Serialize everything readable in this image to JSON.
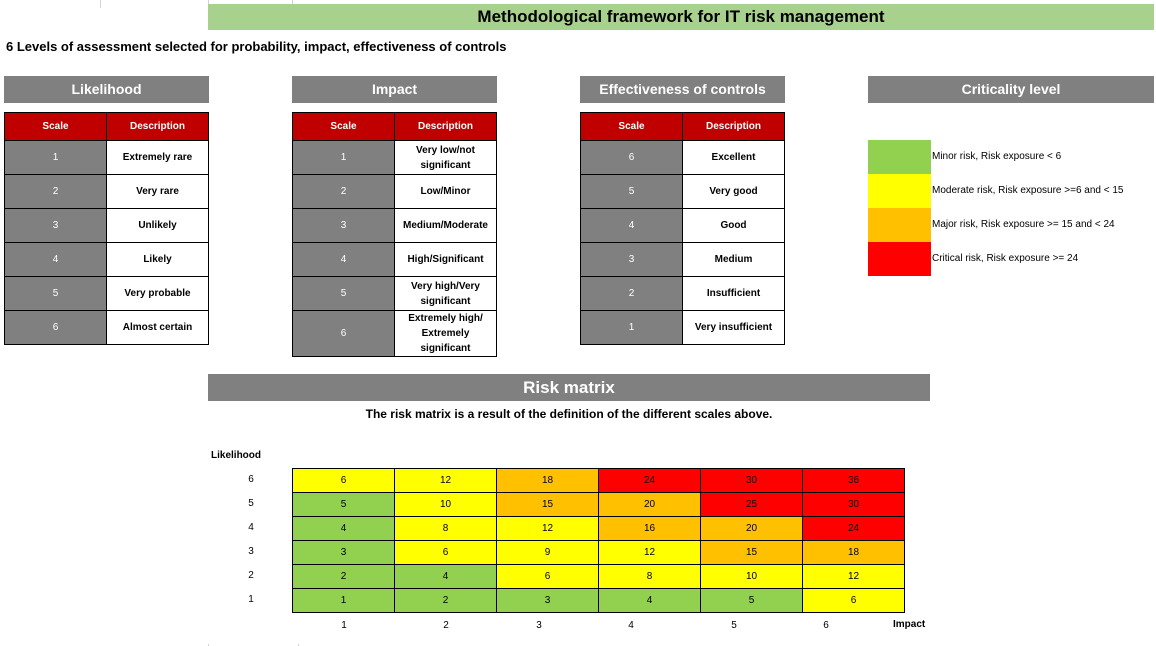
{
  "header": {
    "title": "Methodological framework for IT risk management",
    "subtitle": "6 Levels of assessment selected for probability, impact, effectiveness of controls"
  },
  "colors": {
    "title_band": "#a9d18e",
    "section_header": "#808080",
    "table_header": "#c00000",
    "minor": "#92d050",
    "moderate": "#ffff00",
    "major": "#ffc000",
    "critical": "#ff0000"
  },
  "likelihood": {
    "title": "Likelihood",
    "col_scale": "Scale",
    "col_desc": "Description",
    "rows": [
      {
        "scale": "1",
        "desc": "Extremely rare"
      },
      {
        "scale": "2",
        "desc": "Very rare"
      },
      {
        "scale": "3",
        "desc": "Unlikely"
      },
      {
        "scale": "4",
        "desc": "Likely"
      },
      {
        "scale": "5",
        "desc": "Very probable"
      },
      {
        "scale": "6",
        "desc": "Almost certain"
      }
    ]
  },
  "impact": {
    "title": "Impact",
    "col_scale": "Scale",
    "col_desc": "Description",
    "rows": [
      {
        "scale": "1",
        "desc": "Very low/not significant"
      },
      {
        "scale": "2",
        "desc": "Low/Minor"
      },
      {
        "scale": "3",
        "desc": "Medium/Moderate"
      },
      {
        "scale": "4",
        "desc": "High/Significant"
      },
      {
        "scale": "5",
        "desc": "Very high/Very significant"
      },
      {
        "scale": "6",
        "desc": "Extremely high/ Extremely significant"
      }
    ]
  },
  "effectiveness": {
    "title": "Effectiveness of controls",
    "col_scale": "Scale",
    "col_desc": "Description",
    "rows": [
      {
        "scale": "6",
        "desc": "Excellent"
      },
      {
        "scale": "5",
        "desc": "Very good"
      },
      {
        "scale": "4",
        "desc": "Good"
      },
      {
        "scale": "3",
        "desc": "Medium"
      },
      {
        "scale": "2",
        "desc": "Insufficient"
      },
      {
        "scale": "1",
        "desc": "Very insufficient"
      }
    ]
  },
  "criticality": {
    "title": "Criticality level",
    "levels": [
      {
        "label": "Minor risk, Risk exposure < 6",
        "level": "minor"
      },
      {
        "label": "Moderate risk, Risk exposure >=6 and < 15",
        "level": "moderate"
      },
      {
        "label": "Major risk, Risk exposure >= 15 and < 24",
        "level": "major"
      },
      {
        "label": "Critical risk, Risk exposure >= 24",
        "level": "critical"
      }
    ]
  },
  "risk_matrix": {
    "title": "Risk matrix",
    "note": "The risk matrix is a result of the definition of the different scales above.",
    "y_axis_label": "Likelihood",
    "x_axis_label": "Impact",
    "row_labels": [
      "6",
      "5",
      "4",
      "3",
      "2",
      "1"
    ],
    "col_labels": [
      "1",
      "2",
      "3",
      "4",
      "5",
      "6"
    ],
    "rows": [
      [
        {
          "v": "6",
          "l": "moderate"
        },
        {
          "v": "12",
          "l": "moderate"
        },
        {
          "v": "18",
          "l": "major"
        },
        {
          "v": "24",
          "l": "critical"
        },
        {
          "v": "30",
          "l": "critical"
        },
        {
          "v": "36",
          "l": "critical"
        }
      ],
      [
        {
          "v": "5",
          "l": "minor"
        },
        {
          "v": "10",
          "l": "moderate"
        },
        {
          "v": "15",
          "l": "major"
        },
        {
          "v": "20",
          "l": "major"
        },
        {
          "v": "25",
          "l": "critical"
        },
        {
          "v": "30",
          "l": "critical"
        }
      ],
      [
        {
          "v": "4",
          "l": "minor"
        },
        {
          "v": "8",
          "l": "moderate"
        },
        {
          "v": "12",
          "l": "moderate"
        },
        {
          "v": "16",
          "l": "major"
        },
        {
          "v": "20",
          "l": "major"
        },
        {
          "v": "24",
          "l": "critical"
        }
      ],
      [
        {
          "v": "3",
          "l": "minor"
        },
        {
          "v": "6",
          "l": "moderate"
        },
        {
          "v": "9",
          "l": "moderate"
        },
        {
          "v": "12",
          "l": "moderate"
        },
        {
          "v": "15",
          "l": "major"
        },
        {
          "v": "18",
          "l": "major"
        }
      ],
      [
        {
          "v": "2",
          "l": "minor"
        },
        {
          "v": "4",
          "l": "minor"
        },
        {
          "v": "6",
          "l": "moderate"
        },
        {
          "v": "8",
          "l": "moderate"
        },
        {
          "v": "10",
          "l": "moderate"
        },
        {
          "v": "12",
          "l": "moderate"
        }
      ],
      [
        {
          "v": "1",
          "l": "minor"
        },
        {
          "v": "2",
          "l": "minor"
        },
        {
          "v": "3",
          "l": "minor"
        },
        {
          "v": "4",
          "l": "minor"
        },
        {
          "v": "5",
          "l": "minor"
        },
        {
          "v": "6",
          "l": "moderate"
        }
      ]
    ]
  }
}
